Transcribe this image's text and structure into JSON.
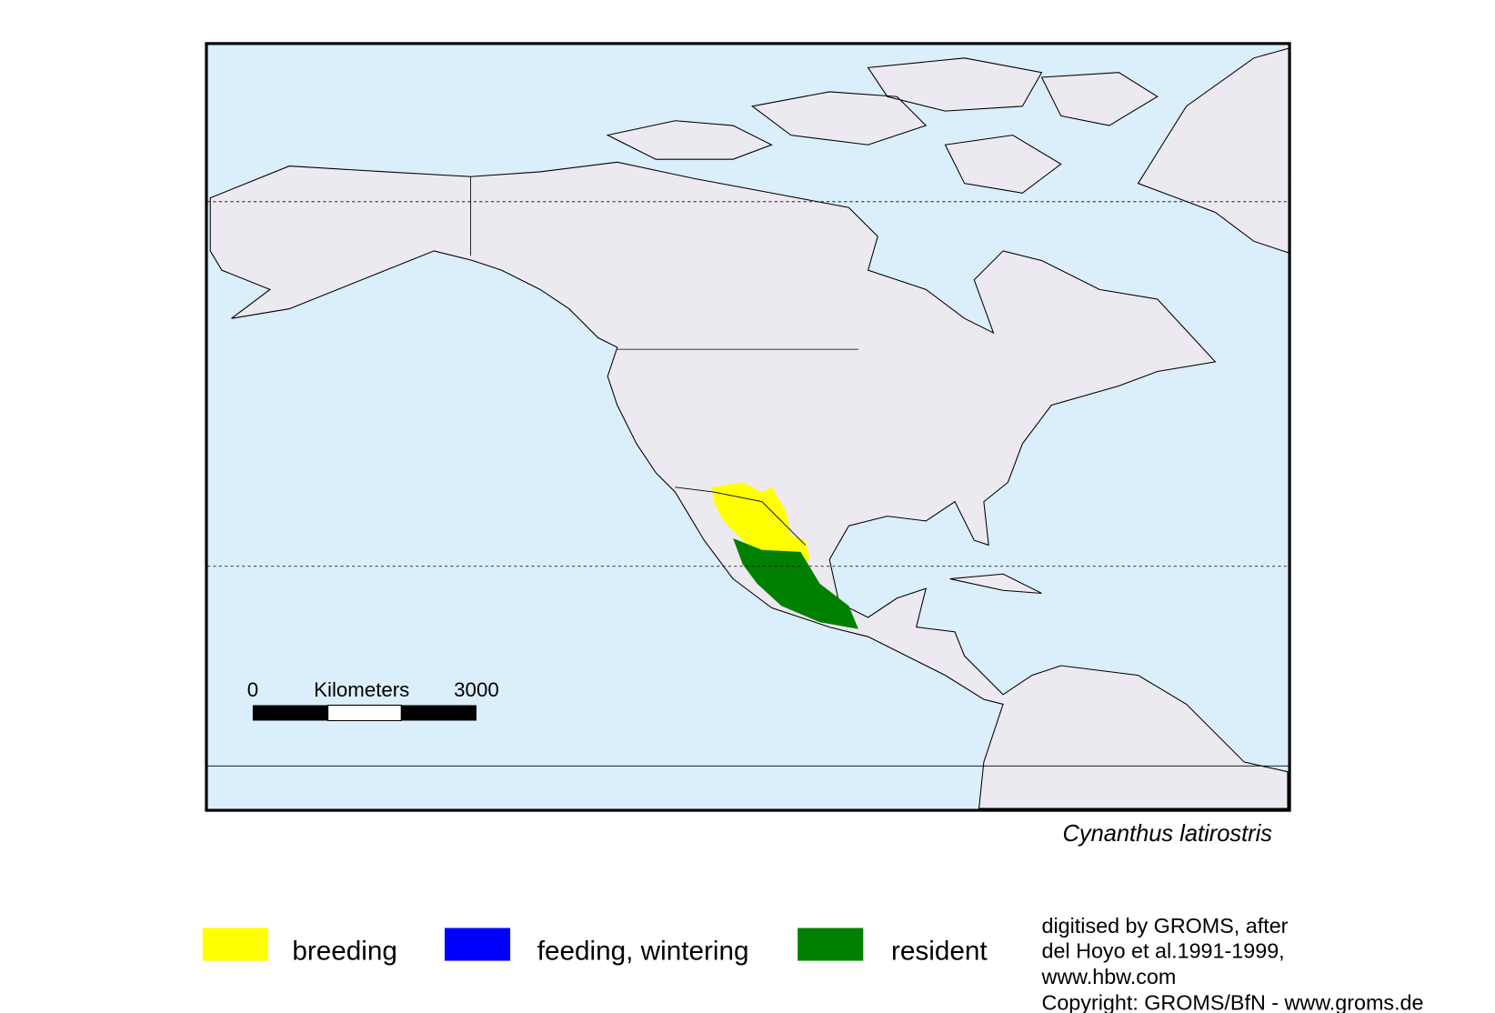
{
  "scale_bar": {
    "start": "0",
    "unit": "Kilometers",
    "end": "3000"
  },
  "species": "Cynanthus latirostris",
  "legend": [
    "breeding",
    "feeding, wintering",
    "resident"
  ],
  "credits": [
    "digitised by GROMS, after",
    "del Hoyo et al.1991-1999,",
    "www.hbw.com",
    "Copyright: GROMS/BfN - www.groms.de"
  ]
}
